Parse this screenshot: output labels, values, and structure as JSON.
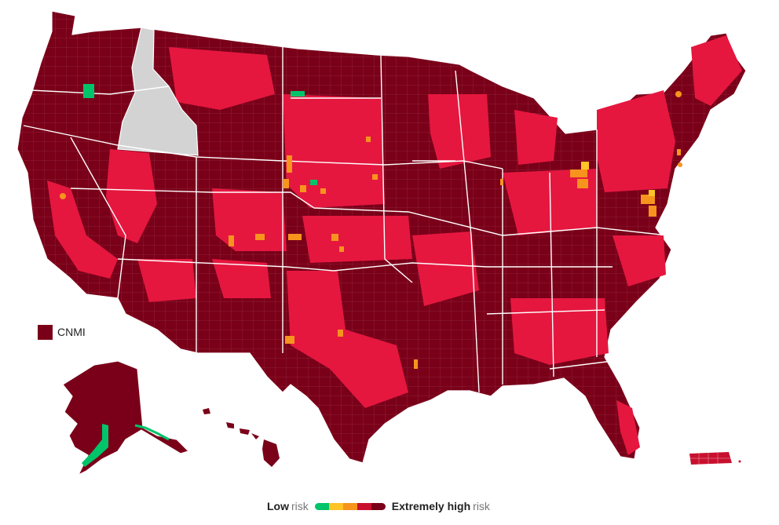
{
  "map": {
    "subject": "county-level risk map of the United States",
    "default_risk_level": "extremely-high",
    "no_data_state": "Idaho",
    "colors": {
      "extremely_high": "#7a0019",
      "very_high": "#e5173f",
      "high": "#c8102e",
      "moderate": "#f7941d",
      "elevated": "#ffc425",
      "low": "#00c46a",
      "no_data": "#d3d3d3"
    }
  },
  "territories": {
    "cnmi": {
      "label": "CNMI",
      "color": "#7a0019"
    }
  },
  "legend": {
    "low_label": "Low",
    "low_suffix": "risk",
    "high_label": "Extremely high",
    "high_suffix": "risk",
    "colors": [
      "#00c46a",
      "#ffc425",
      "#f7941d",
      "#c8102e",
      "#7a0019"
    ]
  }
}
